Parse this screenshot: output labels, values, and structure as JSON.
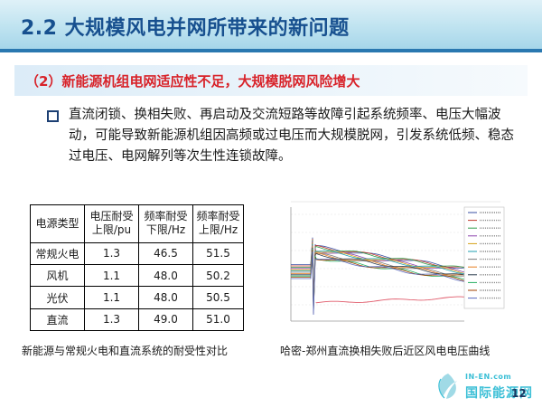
{
  "slide": {
    "title": "2.2 大规模风电并网所带来的新问题",
    "subheading": "（2）新能源机组电网适应性不足，大规模脱网风险增大",
    "bullet_text": "直流闭锁、换相失败、再启动及交流短路等故障引起系统频率、电压大幅波动，可能导致新能源机组因高频或过电压而大规模脱网，引发系统低频、稳态过电压、电网解列等次生性连锁故障。",
    "page_number": "12"
  },
  "table": {
    "headers": [
      "电源类型",
      "电压耐受上限/pu",
      "频率耐受下限/Hz",
      "频率耐受上限/Hz"
    ],
    "rows": [
      [
        "常规火电",
        "1.3",
        "46.5",
        "51.5"
      ],
      [
        "风机",
        "1.1",
        "48.0",
        "50.2"
      ],
      [
        "光伏",
        "1.1",
        "48.0",
        "50.5"
      ],
      [
        "直流",
        "1.3",
        "49.0",
        "51.0"
      ]
    ],
    "caption": "新能源与常规火电和直流系统的耐受性对比"
  },
  "figure": {
    "caption": "哈密-郑州直流换相失败后近区风电电压曲线",
    "colors": [
      "#3a4fa3",
      "#c0392b",
      "#2e9c4a",
      "#8e44ad",
      "#d4a017",
      "#1f9fb0",
      "#7a7a7a",
      "#e67e22",
      "#2c3e50",
      "#27ae60",
      "#a04000",
      "#5b6cc0"
    ]
  },
  "logo": {
    "small_text": "IN-EN.com",
    "big_text": "国际能源网",
    "accent": "#3bbfd6"
  },
  "theme": {
    "title_color": "#17508f",
    "subheading_color": "#d8232a"
  }
}
